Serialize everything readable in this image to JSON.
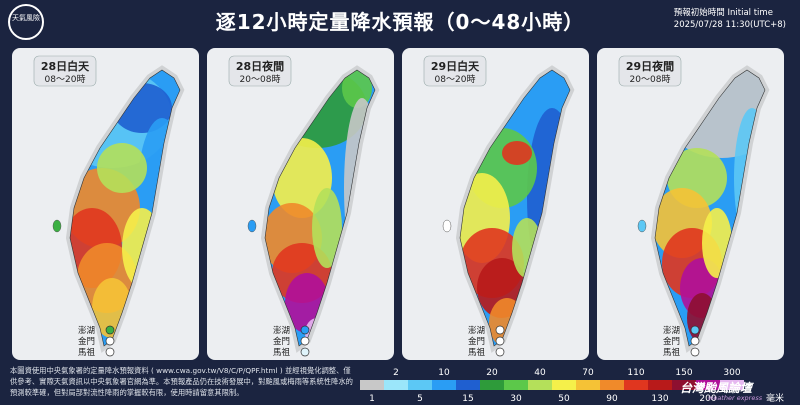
{
  "header": {
    "logo": "天氣風險",
    "title": "逐12小時定量降水預報（0～48小時）",
    "init_label": "預報初始時間 Initial time",
    "init_time": "2025/07/28 11:30(UTC+8)"
  },
  "panels": [
    {
      "day": "28日白天",
      "hours": "08～20時",
      "islands": [
        {
          "name": "澎湖",
          "color": "#3cb043"
        },
        {
          "name": "金門",
          "color": "#ffffff"
        },
        {
          "name": "馬祖",
          "color": "#ffffff"
        }
      ]
    },
    {
      "day": "28日夜間",
      "hours": "20～08時",
      "islands": [
        {
          "name": "澎湖",
          "color": "#2a9df4"
        },
        {
          "name": "金門",
          "color": "#ffffff"
        },
        {
          "name": "馬祖",
          "color": "#dff4fb"
        }
      ]
    },
    {
      "day": "29日白天",
      "hours": "08～20時",
      "islands": [
        {
          "name": "澎湖",
          "color": "#ffffff"
        },
        {
          "name": "金門",
          "color": "#ffffff"
        },
        {
          "name": "馬祖",
          "color": "#ffffff"
        }
      ]
    },
    {
      "day": "29日夜間",
      "hours": "20～08時",
      "islands": [
        {
          "name": "澎湖",
          "color": "#5cc8f5"
        },
        {
          "name": "金門",
          "color": "#ffffff"
        },
        {
          "name": "馬祖",
          "color": "#ffffff"
        }
      ]
    }
  ],
  "footer": {
    "note": "本圖資使用中央氣象署的定量降水預報資料 ( www.cwa.gov.tw/V8/C/P/QPF.html ) 並經視覺化調整、僅供參考、實際天氣資訊以中央氣象署官網為準。本預報產品仍在技術發展中，對颱風或梅雨等系統性降水的預測較準確，但對局部對流性降雨的掌握較有限，使用時請留意其限制。",
    "legend": {
      "levels": [
        1,
        2,
        5,
        10,
        15,
        20,
        30,
        40,
        50,
        70,
        90,
        110,
        130,
        150,
        200,
        300
      ],
      "colors": [
        "#c8c8c8",
        "#9be6fa",
        "#5cc8f5",
        "#2a9df4",
        "#1f5fd0",
        "#2e9b3a",
        "#5cc84a",
        "#b4e05a",
        "#f5f04a",
        "#f5c236",
        "#f08a2a",
        "#e0361f",
        "#b81a1a",
        "#8e1030",
        "#b0109a",
        "#e6b8f0"
      ],
      "unit": "毫米"
    },
    "brand": "台灣颱風論壇",
    "brand_sub": "weather express"
  }
}
